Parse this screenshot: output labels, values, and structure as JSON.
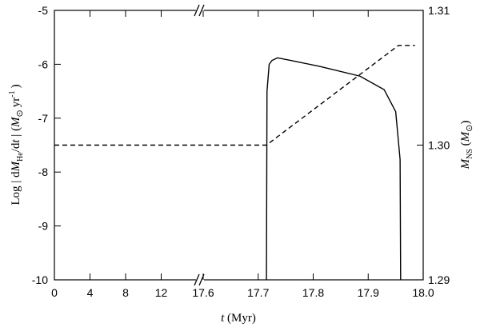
{
  "chart_data": {
    "type": "line",
    "x_label": {
      "parts": [
        "t",
        " (Myr)"
      ]
    },
    "y_label": {
      "parts": [
        "Log | d",
        "M",
        "He",
        "/d",
        "t",
        " | (",
        "M",
        "⊙",
        "yr",
        "-1",
        ")"
      ]
    },
    "y2_label": {
      "parts": [
        "M",
        "NS",
        " (",
        "M",
        "⊙",
        ")"
      ]
    },
    "x_segments": [
      {
        "xlim": [
          0,
          16
        ],
        "xticks": [
          0,
          4,
          8,
          12
        ]
      },
      {
        "xlim": [
          17.6,
          18
        ],
        "xticks": [
          17.6,
          17.7,
          17.8,
          17.9,
          {
            "value": 18,
            "label": "18.0"
          }
        ]
      }
    ],
    "ylim": [
      -10,
      -5
    ],
    "yticks": [
      -10,
      -9,
      -8,
      -7,
      -6,
      -5
    ],
    "y2lim": [
      1.29,
      1.31
    ],
    "y2ticks": [
      1.29,
      {
        "value": 1.3,
        "label": "1.30"
      },
      1.31
    ],
    "series": [
      {
        "style": "solid",
        "color": "#000000",
        "x": [
          17.715,
          17.716,
          17.72,
          17.725,
          17.735,
          17.76,
          17.812,
          17.885,
          17.929,
          17.95,
          17.958,
          17.959
        ],
        "values": [
          -10,
          -6.5,
          -6.0,
          -5.93,
          -5.88,
          -5.93,
          -6.04,
          -6.22,
          -6.47,
          -6.88,
          -7.77,
          -10
        ]
      },
      {
        "style": "dashed",
        "color": "#000000",
        "axis": "y2",
        "x": [
          0,
          16,
          17.6,
          17.715,
          17.955,
          17.985
        ],
        "values": [
          1.3,
          1.3,
          1.3,
          1.3,
          1.3074,
          1.3074
        ]
      }
    ]
  }
}
